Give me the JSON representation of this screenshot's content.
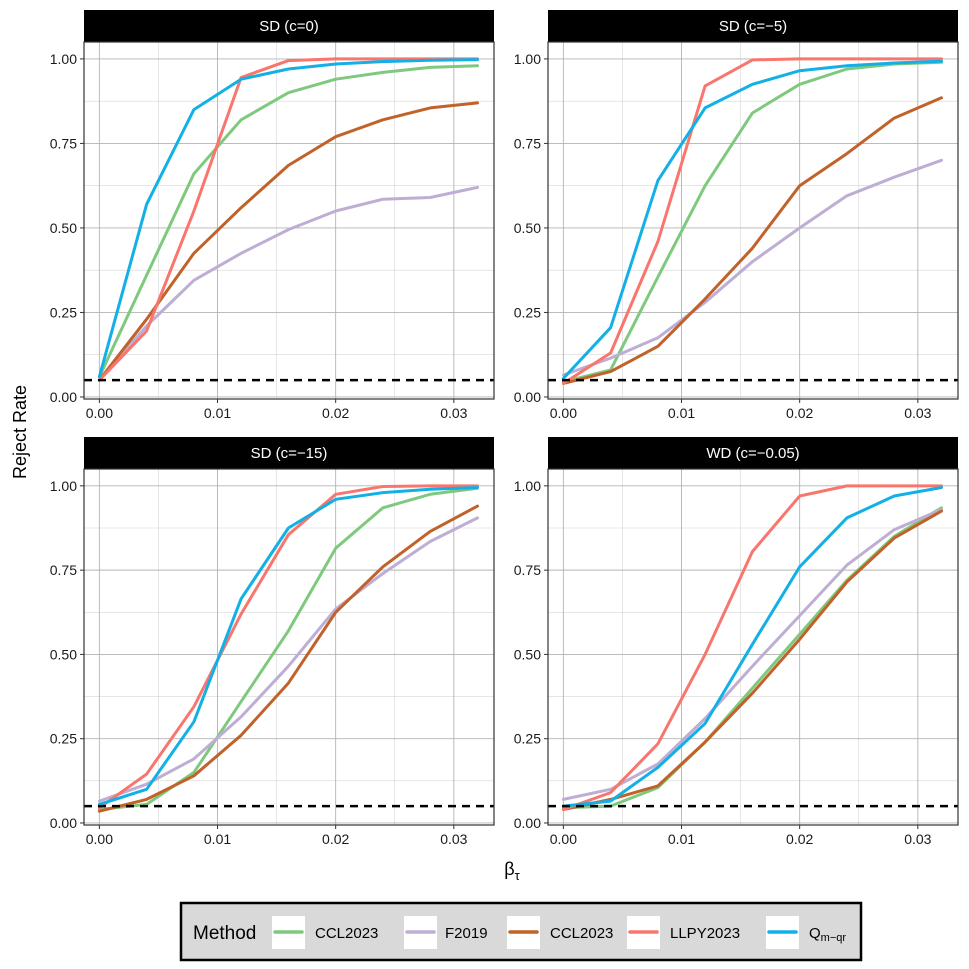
{
  "chart_data": {
    "type": "line",
    "ylabel": "Reject Rate",
    "xlabel_base": "β",
    "xlabel_sub": "τ",
    "xlim": [
      -0.0013,
      0.0334
    ],
    "ylim": [
      -0.006,
      1.05
    ],
    "xticks": [
      0.0,
      0.01,
      0.02,
      0.03
    ],
    "xtick_labels": [
      "0.00",
      "0.01",
      "0.02",
      "0.03"
    ],
    "yticks": [
      0.0,
      0.25,
      0.5,
      0.75,
      1.0
    ],
    "ytick_labels": [
      "0.00",
      "0.25",
      "0.50",
      "0.75",
      "1.00"
    ],
    "reference_line": {
      "y": 0.05,
      "style": "dashed",
      "color": "#000000"
    },
    "legend": {
      "title": "Method",
      "position": "bottom",
      "entries": [
        {
          "label": "CCL2023",
          "color": "#7fc97f"
        },
        {
          "label": "F2019",
          "color": "#beaed4"
        },
        {
          "label": "CCL2023",
          "color": "#c0622a"
        },
        {
          "label": "LLPY2023",
          "color": "#f8766d"
        },
        {
          "label_main": "Q",
          "label_sub": "m−qr",
          "color": "#13b0e6"
        }
      ]
    },
    "panels": [
      {
        "title": "SD (c=0)",
        "series": [
          {
            "name": "CCL2023",
            "color": "#7fc97f",
            "x": [
              0,
              0.004,
              0.008,
              0.012,
              0.016,
              0.02,
              0.024,
              0.028,
              0.032
            ],
            "values": [
              0.06,
              0.36,
              0.66,
              0.82,
              0.9,
              0.94,
              0.96,
              0.975,
              0.98
            ]
          },
          {
            "name": "F2019",
            "color": "#beaed4",
            "x": [
              0,
              0.004,
              0.008,
              0.012,
              0.016,
              0.02,
              0.024,
              0.028,
              0.032
            ],
            "values": [
              0.05,
              0.21,
              0.345,
              0.425,
              0.495,
              0.55,
              0.585,
              0.59,
              0.62
            ]
          },
          {
            "name": "CCL2023",
            "color": "#c0622a",
            "x": [
              0,
              0.004,
              0.008,
              0.012,
              0.016,
              0.02,
              0.024,
              0.028,
              0.032
            ],
            "values": [
              0.05,
              0.23,
              0.425,
              0.56,
              0.685,
              0.77,
              0.82,
              0.855,
              0.87
            ]
          },
          {
            "name": "LLPY2023",
            "color": "#f8766d",
            "x": [
              0,
              0.004,
              0.008,
              0.012,
              0.016,
              0.02,
              0.024,
              0.028,
              0.032
            ],
            "values": [
              0.05,
              0.195,
              0.55,
              0.945,
              0.995,
              1.0,
              1.0,
              1.0,
              1.0
            ]
          },
          {
            "name": "Q m-qr",
            "color": "#13b0e6",
            "x": [
              0,
              0.004,
              0.008,
              0.012,
              0.016,
              0.02,
              0.024,
              0.028,
              0.032
            ],
            "values": [
              0.06,
              0.57,
              0.85,
              0.94,
              0.97,
              0.985,
              0.992,
              0.996,
              0.998
            ]
          }
        ]
      },
      {
        "title": "SD (c=−5)",
        "series": [
          {
            "name": "CCL2023",
            "color": "#7fc97f",
            "x": [
              0,
              0.004,
              0.008,
              0.012,
              0.016,
              0.02,
              0.024,
              0.028,
              0.032
            ],
            "values": [
              0.045,
              0.08,
              0.355,
              0.625,
              0.84,
              0.925,
              0.97,
              0.985,
              0.99
            ]
          },
          {
            "name": "F2019",
            "color": "#beaed4",
            "x": [
              0,
              0.004,
              0.008,
              0.012,
              0.016,
              0.02,
              0.024,
              0.028,
              0.032
            ],
            "values": [
              0.065,
              0.115,
              0.175,
              0.28,
              0.4,
              0.5,
              0.595,
              0.65,
              0.7
            ]
          },
          {
            "name": "CCL2023",
            "color": "#c0622a",
            "x": [
              0,
              0.004,
              0.008,
              0.012,
              0.016,
              0.02,
              0.024,
              0.028,
              0.032
            ],
            "values": [
              0.04,
              0.075,
              0.15,
              0.29,
              0.44,
              0.625,
              0.72,
              0.825,
              0.885
            ]
          },
          {
            "name": "LLPY2023",
            "color": "#f8766d",
            "x": [
              0,
              0.004,
              0.008,
              0.012,
              0.016,
              0.02,
              0.024,
              0.028,
              0.032
            ],
            "values": [
              0.04,
              0.13,
              0.46,
              0.92,
              0.997,
              1.0,
              1.0,
              1.0,
              1.0
            ]
          },
          {
            "name": "Q m-qr",
            "color": "#13b0e6",
            "x": [
              0,
              0.004,
              0.008,
              0.012,
              0.016,
              0.02,
              0.024,
              0.028,
              0.032
            ],
            "values": [
              0.055,
              0.205,
              0.64,
              0.855,
              0.925,
              0.965,
              0.98,
              0.988,
              0.993
            ]
          }
        ]
      },
      {
        "title": "SD (c=−15)",
        "series": [
          {
            "name": "CCL2023",
            "color": "#7fc97f",
            "x": [
              0,
              0.004,
              0.008,
              0.012,
              0.016,
              0.02,
              0.024,
              0.028,
              0.032
            ],
            "values": [
              0.04,
              0.055,
              0.15,
              0.36,
              0.57,
              0.815,
              0.935,
              0.975,
              0.993
            ]
          },
          {
            "name": "F2019",
            "color": "#beaed4",
            "x": [
              0,
              0.004,
              0.008,
              0.012,
              0.016,
              0.02,
              0.024,
              0.028,
              0.032
            ],
            "values": [
              0.065,
              0.115,
              0.19,
              0.315,
              0.465,
              0.635,
              0.74,
              0.835,
              0.905
            ]
          },
          {
            "name": "CCL2023",
            "color": "#c0622a",
            "x": [
              0,
              0.004,
              0.008,
              0.012,
              0.016,
              0.02,
              0.024,
              0.028,
              0.032
            ],
            "values": [
              0.035,
              0.07,
              0.14,
              0.26,
              0.415,
              0.625,
              0.76,
              0.865,
              0.94
            ]
          },
          {
            "name": "LLPY2023",
            "color": "#f8766d",
            "x": [
              0,
              0.004,
              0.008,
              0.012,
              0.016,
              0.02,
              0.024,
              0.028,
              0.032
            ],
            "values": [
              0.045,
              0.145,
              0.345,
              0.62,
              0.855,
              0.975,
              0.998,
              1.0,
              1.0
            ]
          },
          {
            "name": "Q m-qr",
            "color": "#13b0e6",
            "x": [
              0,
              0.004,
              0.008,
              0.012,
              0.016,
              0.02,
              0.024,
              0.028,
              0.032
            ],
            "values": [
              0.055,
              0.1,
              0.3,
              0.665,
              0.875,
              0.96,
              0.98,
              0.99,
              0.995
            ]
          }
        ]
      },
      {
        "title": "WD (c=−0.05)",
        "series": [
          {
            "name": "CCL2023",
            "color": "#7fc97f",
            "x": [
              0,
              0.004,
              0.008,
              0.012,
              0.016,
              0.02,
              0.024,
              0.028,
              0.032
            ],
            "values": [
              0.045,
              0.05,
              0.105,
              0.24,
              0.4,
              0.56,
              0.72,
              0.85,
              0.935
            ]
          },
          {
            "name": "F2019",
            "color": "#beaed4",
            "x": [
              0,
              0.004,
              0.008,
              0.012,
              0.016,
              0.02,
              0.024,
              0.028,
              0.032
            ],
            "values": [
              0.07,
              0.1,
              0.175,
              0.31,
              0.465,
              0.615,
              0.765,
              0.87,
              0.93
            ]
          },
          {
            "name": "CCL2023",
            "color": "#c0622a",
            "x": [
              0,
              0.004,
              0.008,
              0.012,
              0.016,
              0.02,
              0.024,
              0.028,
              0.032
            ],
            "values": [
              0.04,
              0.07,
              0.11,
              0.24,
              0.385,
              0.545,
              0.715,
              0.845,
              0.925
            ]
          },
          {
            "name": "LLPY2023",
            "color": "#f8766d",
            "x": [
              0,
              0.004,
              0.008,
              0.012,
              0.016,
              0.02,
              0.024,
              0.028,
              0.032
            ],
            "values": [
              0.04,
              0.09,
              0.235,
              0.5,
              0.805,
              0.97,
              1.0,
              1.0,
              1.0
            ]
          },
          {
            "name": "Q m-qr",
            "color": "#13b0e6",
            "x": [
              0,
              0.004,
              0.008,
              0.012,
              0.016,
              0.02,
              0.024,
              0.028,
              0.032
            ],
            "values": [
              0.05,
              0.065,
              0.165,
              0.295,
              0.53,
              0.76,
              0.905,
              0.97,
              0.995
            ]
          }
        ]
      }
    ]
  }
}
